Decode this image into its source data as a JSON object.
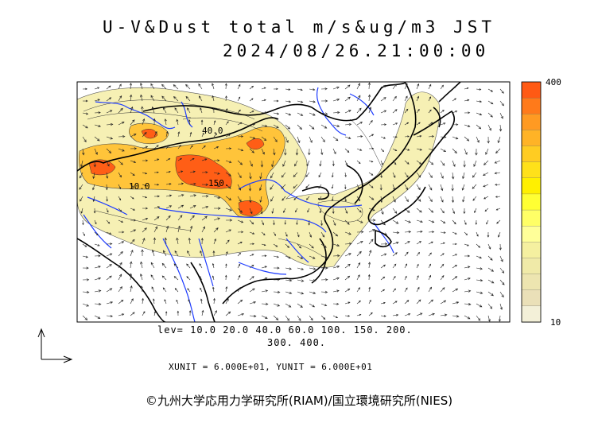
{
  "title": {
    "line1": "U-V&Dust total m/s&ug/m3 JST",
    "line2": "2024/08/26.21:00:00"
  },
  "contour_labels": [
    "40.0",
    "10.0",
    "150."
  ],
  "levels": {
    "line1": "lev= 10.0 20.0 40.0 60.0 100. 150. 200.",
    "line2": "300. 400."
  },
  "units": "XUNIT = 6.000E+01, YUNIT = 6.000E+01",
  "colorbar": {
    "max_label": "400",
    "min_label": "10",
    "colors": [
      "#ff5a14",
      "#ff7a1a",
      "#ff9a22",
      "#ffb326",
      "#ffcc22",
      "#ffe11a",
      "#fff000",
      "#ffff33",
      "#ffff66",
      "#ffff99",
      "#f5f0a0",
      "#f0eaa8",
      "#ede5b0",
      "#eae0b8",
      "#f3f0d8"
    ]
  },
  "copyright": "©九州大学応用力学研究所(RIAM)/国立環境研究所(NIES)",
  "colors": {
    "coast": "#000000",
    "rivers": "#1e3cff",
    "dust_low": "#f5efb0",
    "dust_mid": "#ffb830",
    "dust_high": "#ff5a14"
  }
}
